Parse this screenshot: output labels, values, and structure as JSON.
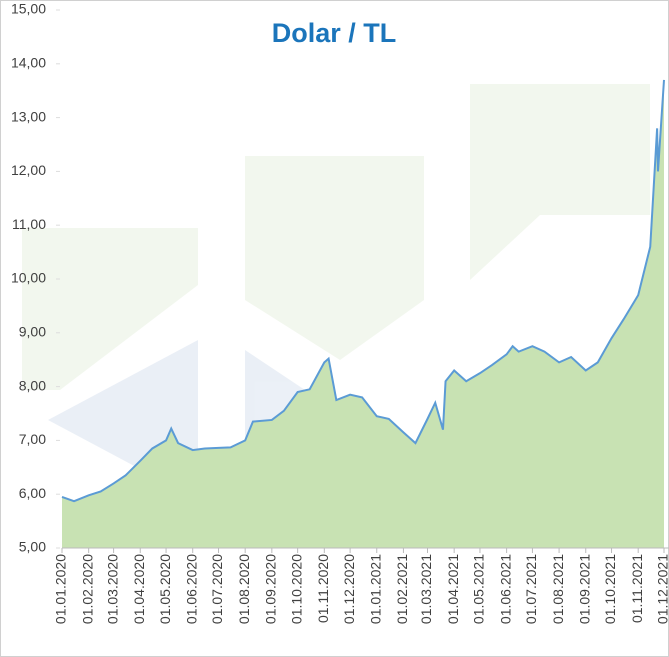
{
  "chart_data": {
    "type": "area",
    "title": "Dolar / TL",
    "x": [
      "01.01.2020",
      "15.01.2020",
      "01.02.2020",
      "15.02.2020",
      "01.03.2020",
      "15.03.2020",
      "01.04.2020",
      "15.04.2020",
      "01.05.2020",
      "07.05.2020",
      "15.05.2020",
      "01.06.2020",
      "15.06.2020",
      "01.07.2020",
      "15.07.2020",
      "01.08.2020",
      "10.08.2020",
      "01.09.2020",
      "15.09.2020",
      "01.10.2020",
      "15.10.2020",
      "01.11.2020",
      "06.11.2020",
      "15.11.2020",
      "01.12.2020",
      "15.12.2020",
      "01.01.2021",
      "15.01.2021",
      "01.02.2021",
      "15.02.2021",
      "01.03.2021",
      "10.03.2021",
      "19.03.2021",
      "22.03.2021",
      "01.04.2021",
      "15.04.2021",
      "01.05.2021",
      "15.05.2021",
      "01.06.2021",
      "08.06.2021",
      "15.06.2021",
      "01.07.2021",
      "15.07.2021",
      "01.08.2021",
      "15.08.2021",
      "01.09.2021",
      "15.09.2021",
      "01.10.2021",
      "15.10.2021",
      "01.11.2021",
      "15.11.2021",
      "23.11.2021",
      "24.11.2021",
      "01.12.2021"
    ],
    "series": [
      {
        "name": "Dolar / TL",
        "fill": "#c8e2b3",
        "color": "#5b9bd5",
        "values": [
          5.95,
          5.87,
          5.98,
          6.05,
          6.2,
          6.35,
          6.62,
          6.85,
          7.0,
          7.22,
          6.95,
          6.82,
          6.85,
          6.86,
          6.87,
          7.0,
          7.35,
          7.38,
          7.55,
          7.9,
          7.95,
          8.45,
          8.52,
          7.75,
          7.85,
          7.8,
          7.45,
          7.4,
          7.15,
          6.95,
          7.4,
          7.7,
          7.2,
          8.1,
          8.3,
          8.1,
          8.25,
          8.4,
          8.6,
          8.75,
          8.65,
          8.75,
          8.65,
          8.45,
          8.55,
          8.3,
          8.45,
          8.9,
          9.25,
          9.7,
          10.6,
          12.8,
          12.0,
          13.7
        ]
      }
    ],
    "xlim": [
      "01.01.2020",
      "01.12.2021"
    ],
    "xticks": [
      "01.01.2020",
      "01.02.2020",
      "01.03.2020",
      "01.04.2020",
      "01.05.2020",
      "01.06.2020",
      "01.07.2020",
      "01.08.2020",
      "01.09.2020",
      "01.10.2020",
      "01.11.2020",
      "01.12.2020",
      "01.01.2021",
      "01.02.2021",
      "01.03.2021",
      "01.04.2021",
      "01.05.2021",
      "01.06.2021",
      "01.07.2021",
      "01.08.2021",
      "01.09.2021",
      "01.10.2021",
      "01.11.2021",
      "01.12.2021"
    ],
    "ylim": [
      5,
      15
    ],
    "yticks": [
      {
        "value": 5,
        "label": "5,00"
      },
      {
        "value": 6,
        "label": "6,00"
      },
      {
        "value": 7,
        "label": "7,00"
      },
      {
        "value": 8,
        "label": "8,00"
      },
      {
        "value": 9,
        "label": "9,00"
      },
      {
        "value": 10,
        "label": "10,00"
      },
      {
        "value": 11,
        "label": "11,00"
      },
      {
        "value": 12,
        "label": "12,00"
      },
      {
        "value": 13,
        "label": "13,00"
      },
      {
        "value": 14,
        "label": "14,00"
      },
      {
        "value": 15,
        "label": "15,00"
      }
    ]
  }
}
